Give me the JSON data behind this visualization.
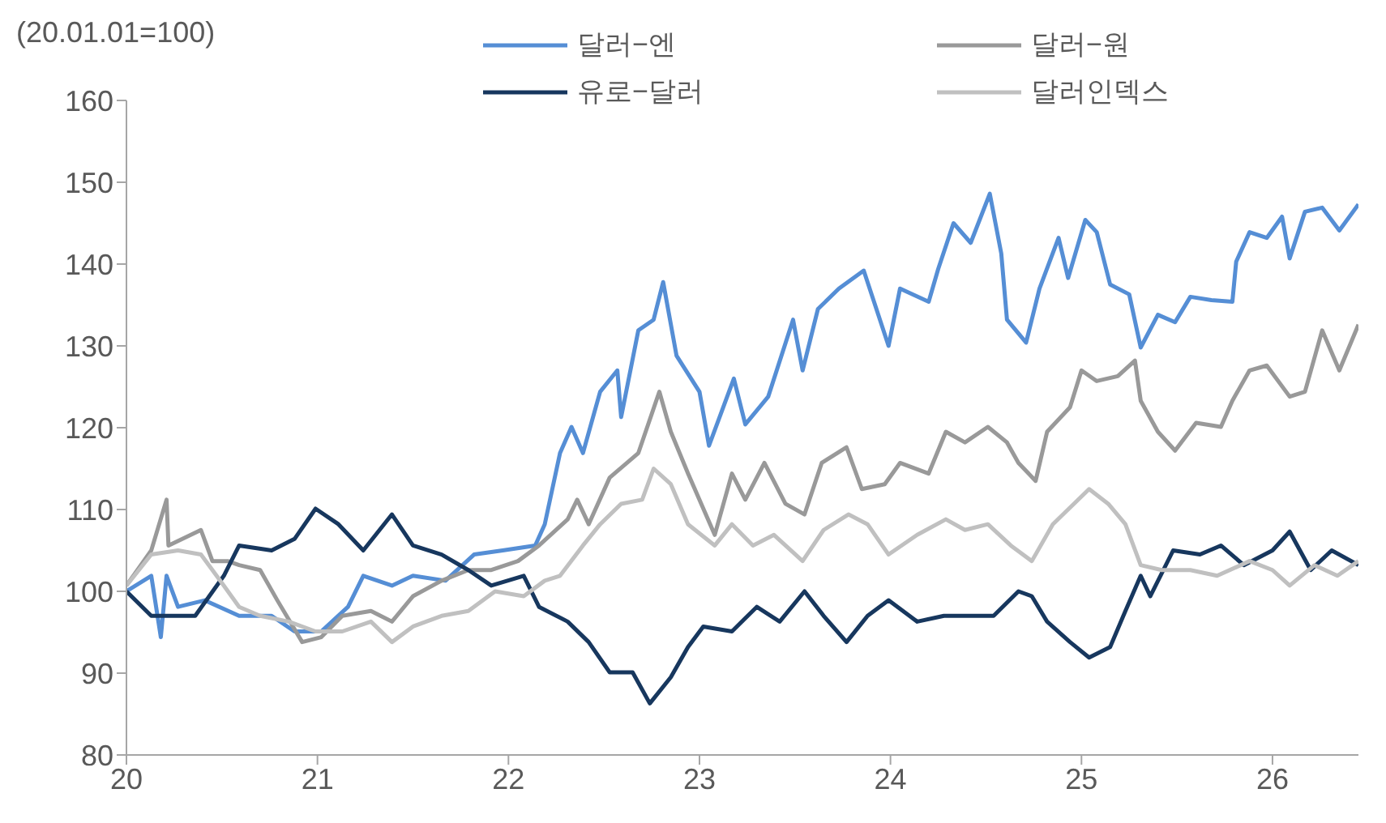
{
  "chart_data": {
    "type": "line",
    "ylabel": "(20.01.01=100)",
    "xlim": [
      2020,
      2026.45
    ],
    "xticks": [
      {
        "value": 2020,
        "label": "20"
      },
      {
        "value": 2021,
        "label": "21"
      },
      {
        "value": 2022,
        "label": "22"
      },
      {
        "value": 2023,
        "label": "23"
      },
      {
        "value": 2024,
        "label": "24"
      },
      {
        "value": 2025,
        "label": "25"
      },
      {
        "value": 2026,
        "label": "26"
      }
    ],
    "ylim": [
      80,
      160
    ],
    "yticks": [
      80,
      90,
      100,
      110,
      120,
      130,
      140,
      150,
      160
    ],
    "grid": false,
    "legend": "top",
    "marker": "none",
    "line_style": "solid",
    "series": [
      {
        "name": "달러−엔",
        "color": "#558ed5",
        "x": [
          2020.0,
          2020.13,
          2020.18,
          2020.21,
          2020.27,
          2020.41,
          2020.59,
          2020.76,
          2020.88,
          2021.02,
          2021.16,
          2021.24,
          2021.39,
          2021.5,
          2021.67,
          2021.82,
          2021.97,
          2022.14,
          2022.19,
          2022.27,
          2022.33,
          2022.39,
          2022.48,
          2022.57,
          2022.59,
          2022.68,
          2022.76,
          2022.81,
          2022.88,
          2023.0,
          2023.05,
          2023.18,
          2023.24,
          2023.36,
          2023.49,
          2023.54,
          2023.62,
          2023.73,
          2023.86,
          2023.99,
          2024.05,
          2024.2,
          2024.25,
          2024.33,
          2024.42,
          2024.52,
          2024.58,
          2024.61,
          2024.71,
          2024.78,
          2024.88,
          2024.93,
          2025.02,
          2025.08,
          2025.15,
          2025.25,
          2025.31,
          2025.4,
          2025.49,
          2025.57,
          2025.68,
          2025.79,
          2025.81,
          2025.88,
          2025.97,
          2026.05,
          2026.09,
          2026.17,
          2026.26,
          2026.35,
          2026.45
        ],
        "values": [
          100,
          101.9,
          94.4,
          101.9,
          98.1,
          98.9,
          97,
          97,
          95.1,
          95.1,
          98.1,
          101.9,
          100.7,
          101.9,
          101.3,
          104.5,
          105,
          105.6,
          108.2,
          116.9,
          120.1,
          116.9,
          124.4,
          127,
          121.3,
          131.9,
          133.2,
          137.8,
          128.8,
          124.4,
          117.8,
          126,
          120.4,
          123.8,
          133.2,
          127,
          134.5,
          137,
          139.2,
          130,
          137,
          135.4,
          139.4,
          145,
          142.6,
          148.6,
          141.3,
          133.2,
          130.4,
          137,
          143.2,
          138.3,
          145.4,
          143.9,
          137.5,
          136.3,
          129.8,
          133.8,
          132.9,
          136,
          135.6,
          135.4,
          140.3,
          143.9,
          143.2,
          145.8,
          140.7,
          146.4,
          146.9,
          144.1,
          147.3
        ]
      },
      {
        "name": "달러−원",
        "color": "#999999",
        "x": [
          2020.0,
          2020.13,
          2020.21,
          2020.22,
          2020.39,
          2020.45,
          2020.53,
          2020.59,
          2020.7,
          2020.79,
          2020.92,
          2021.02,
          2021.13,
          2021.28,
          2021.39,
          2021.5,
          2021.65,
          2021.79,
          2021.91,
          2022.05,
          2022.16,
          2022.31,
          2022.36,
          2022.42,
          2022.53,
          2022.68,
          2022.79,
          2022.85,
          2022.94,
          2023.08,
          2023.17,
          2023.24,
          2023.34,
          2023.45,
          2023.55,
          2023.64,
          2023.77,
          2023.85,
          2023.97,
          2024.05,
          2024.2,
          2024.29,
          2024.39,
          2024.51,
          2024.61,
          2024.67,
          2024.76,
          2024.82,
          2024.94,
          2025.0,
          2025.08,
          2025.19,
          2025.28,
          2025.31,
          2025.4,
          2025.49,
          2025.6,
          2025.73,
          2025.79,
          2025.88,
          2025.97,
          2026.09,
          2026.17,
          2026.26,
          2026.35,
          2026.45
        ],
        "values": [
          100.7,
          105,
          111.2,
          105.6,
          107.5,
          103.7,
          103.7,
          103.2,
          102.6,
          98.9,
          93.8,
          94.4,
          97,
          97.6,
          96.3,
          99.4,
          101.3,
          102.6,
          102.6,
          103.7,
          105.6,
          108.8,
          111.2,
          108.2,
          113.9,
          116.9,
          124.4,
          119.5,
          114.4,
          106.9,
          114.4,
          111.2,
          115.7,
          110.7,
          109.4,
          115.7,
          117.6,
          112.5,
          113.1,
          115.7,
          114.4,
          119.5,
          118.2,
          120.1,
          118.2,
          115.7,
          113.5,
          119.5,
          122.5,
          127,
          125.7,
          126.3,
          128.2,
          123.3,
          119.5,
          117.2,
          120.6,
          120.1,
          123.3,
          127,
          127.6,
          123.8,
          124.4,
          131.9,
          127,
          132.6
        ]
      },
      {
        "name": "유로−달러",
        "color": "#17375e",
        "x": [
          2020.0,
          2020.13,
          2020.22,
          2020.36,
          2020.51,
          2020.59,
          2020.76,
          2020.88,
          2020.99,
          2021.11,
          2021.24,
          2021.39,
          2021.5,
          2021.65,
          2021.79,
          2021.91,
          2022.08,
          2022.16,
          2022.31,
          2022.42,
          2022.53,
          2022.65,
          2022.74,
          2022.85,
          2022.94,
          2023.02,
          2023.17,
          2023.3,
          2023.42,
          2023.55,
          2023.65,
          2023.77,
          2023.88,
          2023.99,
          2024.14,
          2024.28,
          2024.42,
          2024.54,
          2024.67,
          2024.74,
          2024.82,
          2024.94,
          2025.04,
          2025.15,
          2025.23,
          2025.31,
          2025.36,
          2025.48,
          2025.62,
          2025.73,
          2025.85,
          2026.0,
          2026.09,
          2026.2,
          2026.31,
          2026.45
        ],
        "values": [
          100,
          97,
          97,
          97,
          101.9,
          105.6,
          105,
          106.4,
          110.1,
          108.2,
          105,
          109.4,
          105.6,
          104.5,
          102.6,
          100.7,
          101.9,
          98.1,
          96.3,
          93.8,
          90.1,
          90.1,
          86.3,
          89.5,
          93.2,
          95.7,
          95.1,
          98.1,
          96.3,
          100,
          97,
          93.8,
          97,
          98.9,
          96.3,
          97,
          97,
          97,
          100,
          99.4,
          96.3,
          93.8,
          91.9,
          93.2,
          97.6,
          101.9,
          99.4,
          105,
          104.5,
          105.6,
          103.2,
          105,
          107.3,
          102.6,
          105,
          103.2
        ]
      },
      {
        "name": "달러인덱스",
        "color": "#c0c0c0",
        "x": [
          2020.0,
          2020.13,
          2020.27,
          2020.39,
          2020.51,
          2020.59,
          2020.7,
          2020.85,
          2020.99,
          2021.13,
          2021.28,
          2021.39,
          2021.5,
          2021.65,
          2021.79,
          2021.93,
          2022.08,
          2022.19,
          2022.27,
          2022.39,
          2022.48,
          2022.59,
          2022.7,
          2022.76,
          2022.85,
          2022.94,
          2023.08,
          2023.17,
          2023.28,
          2023.39,
          2023.54,
          2023.65,
          2023.78,
          2023.88,
          2023.99,
          2024.14,
          2024.29,
          2024.39,
          2024.51,
          2024.63,
          2024.74,
          2024.85,
          2025.04,
          2025.14,
          2025.23,
          2025.31,
          2025.42,
          2025.57,
          2025.71,
          2025.88,
          2026.0,
          2026.09,
          2026.22,
          2026.34,
          2026.45
        ],
        "values": [
          100.7,
          104.5,
          105,
          104.5,
          100.7,
          98.1,
          97,
          96.3,
          95.1,
          95.1,
          96.3,
          93.8,
          95.7,
          97,
          97.6,
          100,
          99.4,
          101.3,
          101.9,
          105.6,
          108.2,
          110.7,
          111.2,
          115,
          113.1,
          108.2,
          105.6,
          108.2,
          105.6,
          106.9,
          103.7,
          107.5,
          109.4,
          108.2,
          104.5,
          106.9,
          108.8,
          107.5,
          108.2,
          105.6,
          103.7,
          108.2,
          112.5,
          110.7,
          108.2,
          103.2,
          102.6,
          102.6,
          101.9,
          103.7,
          102.6,
          100.7,
          103.2,
          101.9,
          103.7
        ]
      }
    ]
  }
}
